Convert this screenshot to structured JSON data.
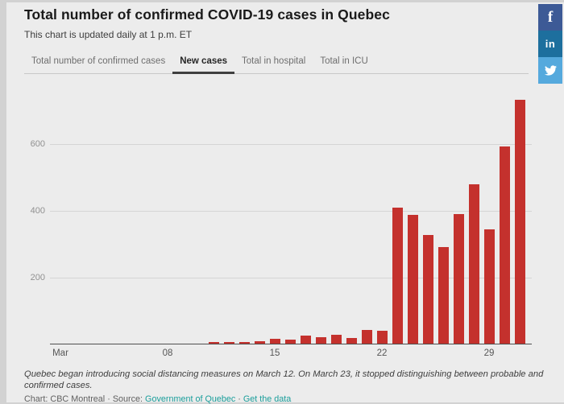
{
  "header": {
    "title": "Total number of confirmed COVID-19 cases in Quebec",
    "subtitle": "This chart is updated daily at 1 p.m. ET"
  },
  "tabs": [
    {
      "label": "Total number of confirmed cases",
      "active": false
    },
    {
      "label": "New cases",
      "active": true
    },
    {
      "label": "Total in hospital",
      "active": false
    },
    {
      "label": "Total in ICU",
      "active": false
    }
  ],
  "share_buttons": [
    {
      "name": "facebook",
      "glyph": "f",
      "color": "#3d5a96"
    },
    {
      "name": "linkedin",
      "glyph": "in",
      "color": "#1d6f9e"
    },
    {
      "name": "twitter",
      "glyph": "bird",
      "color": "#55a9dd"
    }
  ],
  "chart_data": {
    "type": "bar",
    "title": "New cases",
    "x_unit": "Day of March 2020",
    "days": [
      1,
      2,
      3,
      4,
      5,
      6,
      7,
      8,
      9,
      10,
      11,
      12,
      13,
      14,
      15,
      16,
      17,
      18,
      19,
      20,
      21,
      22,
      23,
      24,
      25,
      26,
      27,
      28,
      29,
      30,
      31
    ],
    "values": [
      0,
      0,
      0,
      0,
      0,
      0,
      0,
      0,
      0,
      0,
      4,
      4,
      4,
      8,
      15,
      11,
      24,
      20,
      27,
      18,
      42,
      38,
      408,
      385,
      326,
      290,
      389,
      477,
      342,
      590,
      732
    ],
    "x_ticks": [
      {
        "day": 1,
        "label": "Mar"
      },
      {
        "day": 8,
        "label": "08"
      },
      {
        "day": 15,
        "label": "15"
      },
      {
        "day": 22,
        "label": "22"
      },
      {
        "day": 29,
        "label": "29"
      }
    ],
    "y_ticks": [
      200,
      400,
      600
    ],
    "ylim": [
      0,
      760
    ],
    "bar_color": "#c4312d",
    "grid": true,
    "legend": "none"
  },
  "footer": {
    "note": "Quebec began introducing social distancing measures on March 12. On March 23, it stopped distinguishing between probable and confirmed cases.",
    "credit_prefix": "Chart: CBC Montreal",
    "separator": "·",
    "source_label": "Source:",
    "source_link": "Government of Quebec",
    "get_data_link": "Get the data",
    "link_color": "#1a9e9b"
  }
}
